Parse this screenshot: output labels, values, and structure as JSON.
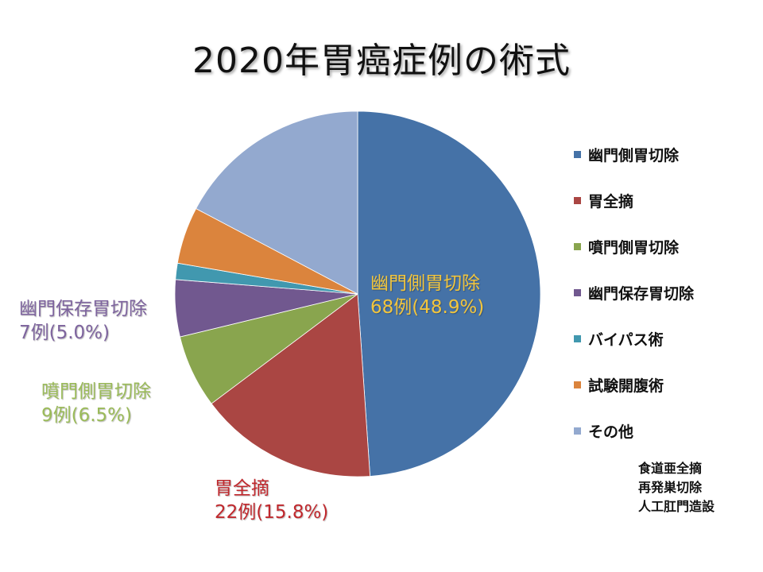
{
  "chart_data": {
    "type": "pie",
    "title": "2020年胃癌症例の術式",
    "legend_position": "right",
    "slices": [
      {
        "name": "幽門側胃切除",
        "value": 68,
        "percent": 48.9,
        "color": "#4572A7",
        "label_line1": "幽門側胃切除",
        "label_line2": "68例(48.9%)",
        "label_color": "#F2C53D"
      },
      {
        "name": "胃全摘",
        "value": 22,
        "percent": 15.8,
        "color": "#AA4643",
        "label_line1": "胃全摘",
        "label_line2": "22例(15.8%)",
        "label_color": "#C0282D"
      },
      {
        "name": "噴門側胃切除",
        "value": 9,
        "percent": 6.5,
        "color": "#89A54E",
        "label_line1": "噴門側胃切除",
        "label_line2": "9例(6.5%)",
        "label_color": "#9BBB59"
      },
      {
        "name": "幽門保存胃切除",
        "value": 7,
        "percent": 5.0,
        "color": "#71588F",
        "label_line1": "幽門保存胃切除",
        "label_line2": "7例(5.0%)",
        "label_color": "#7E649E"
      },
      {
        "name": "バイパス術",
        "value": 2,
        "percent": 1.4,
        "color": "#4198AF",
        "label_line1": "",
        "label_line2": ""
      },
      {
        "name": "試験開腹術",
        "value": 7,
        "percent": 5.0,
        "color": "#DB843D",
        "label_line1": "",
        "label_line2": ""
      },
      {
        "name": "その他",
        "value": 24,
        "percent": 17.3,
        "color": "#93A9CF",
        "label_line1": "",
        "label_line2": ""
      }
    ],
    "notes": [
      "食道亜全摘",
      "再発巣切除",
      "人工肛門造設"
    ]
  }
}
